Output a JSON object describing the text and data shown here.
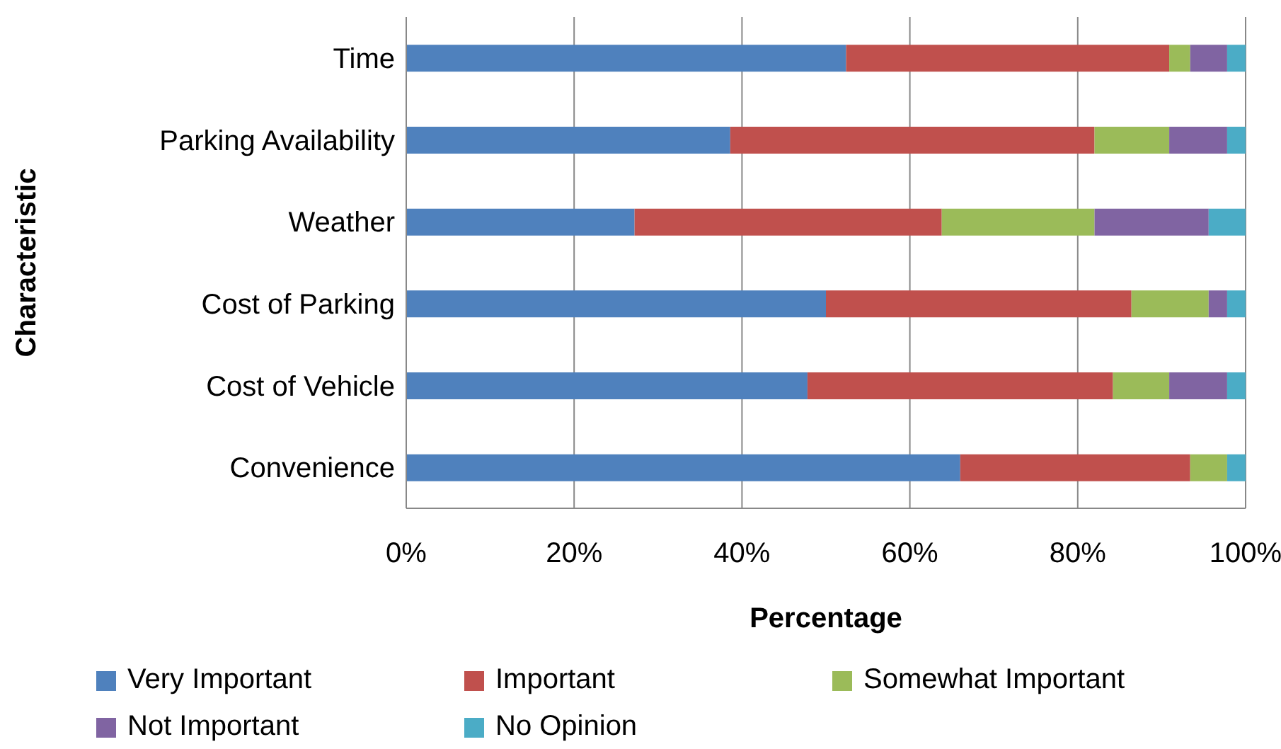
{
  "chart_data": {
    "type": "bar",
    "orientation": "horizontal",
    "stacked": true,
    "xlabel": "Percentage",
    "ylabel": "Characteristic",
    "categories": [
      "Time",
      "Parking Availability",
      "Weather",
      "Cost of Parking",
      "Cost of Vehicle",
      "Convenience"
    ],
    "series": [
      {
        "name": "Very Important",
        "color": "#4f81bd",
        "values": [
          52.4,
          38.6,
          27.2,
          50.0,
          47.8,
          66.0
        ]
      },
      {
        "name": "Important",
        "color": "#c0504d",
        "values": [
          38.5,
          43.4,
          36.6,
          36.4,
          36.4,
          27.4
        ]
      },
      {
        "name": "Somewhat Important",
        "color": "#9bbb59",
        "values": [
          2.5,
          8.9,
          18.2,
          9.2,
          6.7,
          4.4
        ]
      },
      {
        "name": "Not Important",
        "color": "#8064a2",
        "values": [
          4.4,
          6.9,
          13.6,
          2.2,
          6.9,
          0
        ]
      },
      {
        "name": "No Opinion",
        "color": "#4bacc6",
        "values": [
          2.2,
          2.2,
          4.4,
          2.2,
          2.2,
          2.2
        ]
      }
    ],
    "xlim": [
      0,
      100
    ],
    "xticks": [
      {
        "value": 0,
        "label": "0%"
      },
      {
        "value": 20,
        "label": "20%"
      },
      {
        "value": 40,
        "label": "40%"
      },
      {
        "value": 60,
        "label": "60%"
      },
      {
        "value": 80,
        "label": "80%"
      },
      {
        "value": 100,
        "label": "100%"
      }
    ],
    "grid": "x",
    "legend": "bottom"
  }
}
